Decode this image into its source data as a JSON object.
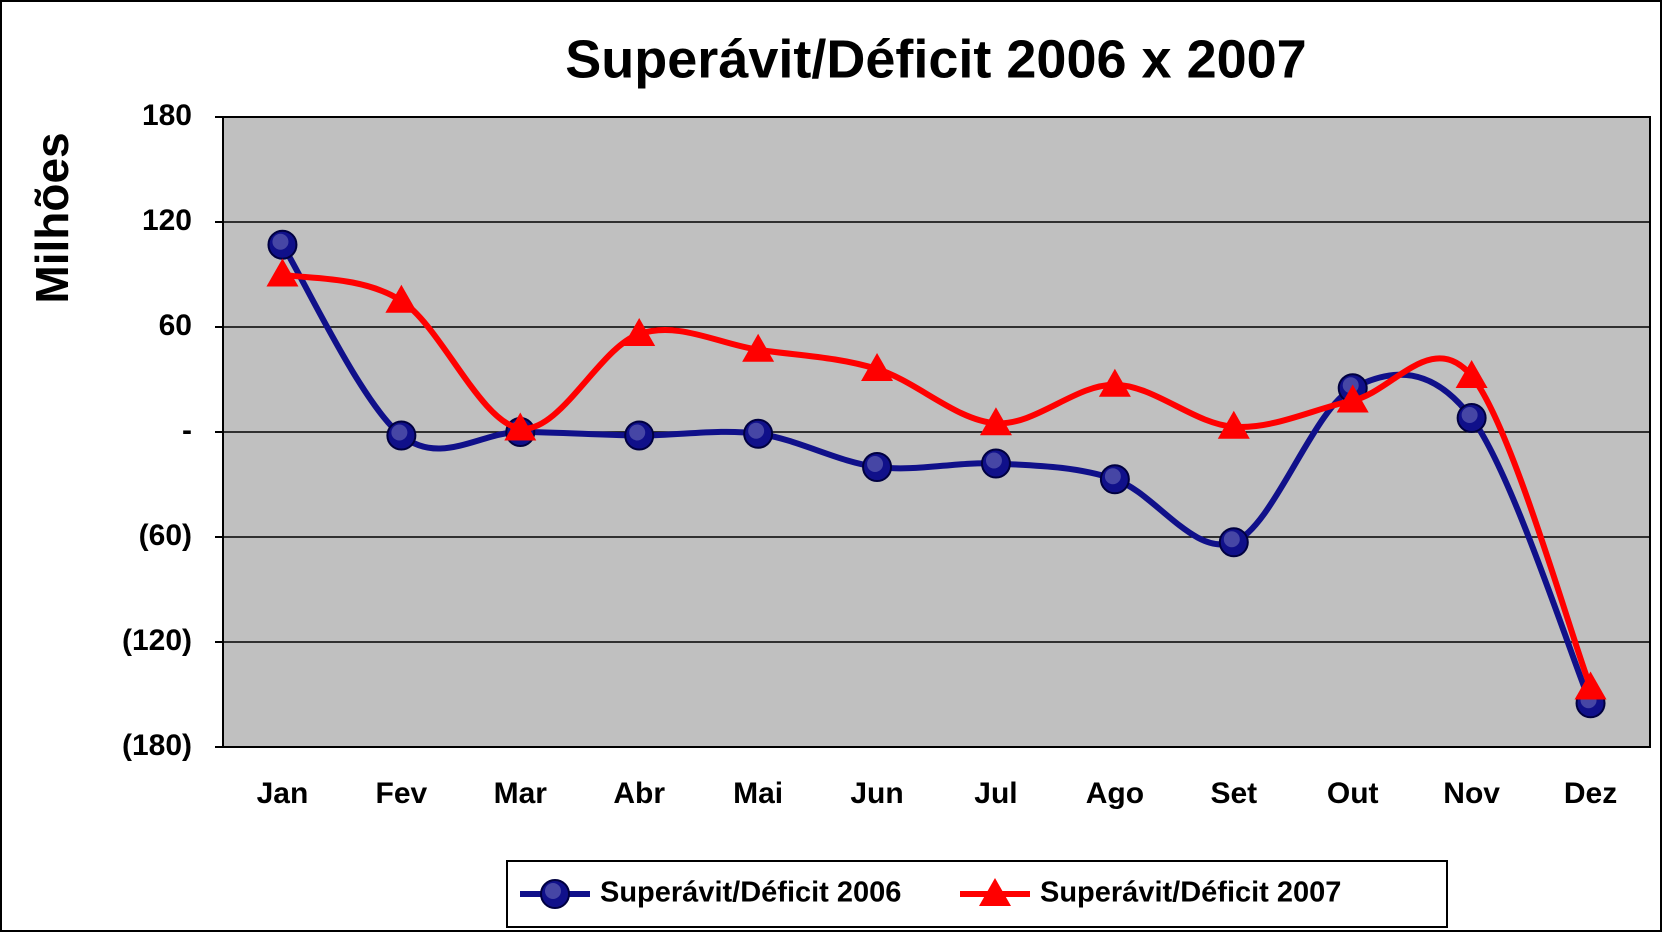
{
  "chart_data": {
    "type": "line",
    "title": "Superávit/Déficit 2006 x 2007",
    "y_label": "Milhões",
    "categories": [
      "Jan",
      "Fev",
      "Mar",
      "Abr",
      "Mai",
      "Jun",
      "Jul",
      "Ago",
      "Set",
      "Out",
      "Nov",
      "Dez"
    ],
    "series": [
      {
        "name": "Superávit/Déficit 2006",
        "color": "#10108a",
        "marker": "circle",
        "values": [
          107,
          -2,
          0,
          -2,
          -1,
          -20,
          -18,
          -27,
          -63,
          25,
          8,
          -155
        ]
      },
      {
        "name": "Superávit/Déficit 2007",
        "color": "#ff0000",
        "marker": "triangle",
        "values": [
          90,
          75,
          2,
          56,
          47,
          36,
          5,
          27,
          3,
          18,
          32,
          -146
        ]
      }
    ],
    "ylim": [
      -180,
      180
    ],
    "yticks": [
      {
        "value": -180,
        "label": "(180)"
      },
      {
        "value": -120,
        "label": "(120)"
      },
      {
        "value": -60,
        "label": "(60)"
      },
      {
        "value": 0,
        "label": "-"
      },
      60,
      120,
      180
    ],
    "grid": true,
    "legend": "bottom"
  }
}
